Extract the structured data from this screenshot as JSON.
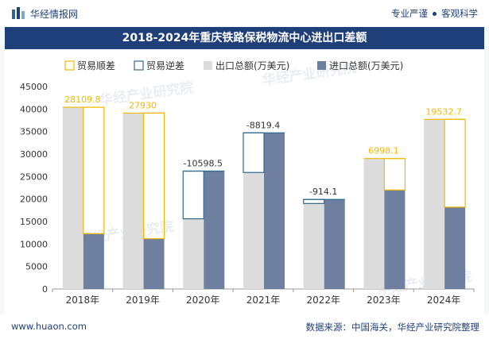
{
  "header": {
    "brand": "华经情报网",
    "tagline_left": "专业严谨",
    "tagline_right": "客观科学"
  },
  "title": "2018-2024年重庆铁路保税物流中心进出口差额",
  "footer": {
    "site": "www.huaon.com",
    "source": "数据来源：中国海关，华经产业研究院整理"
  },
  "watermarks": [
    "华经产业研究院",
    "华经产业研究院",
    "华经产业研究院",
    "华经产业研究院"
  ],
  "colors": {
    "surplus": "#f5b800",
    "deficit": "#2e6a8e",
    "export": "#dcdcdc",
    "import": "#6f7f9f",
    "label": "#f5b800",
    "deficit_label": "#333333",
    "brand": "#1f3f7a"
  },
  "chart_data": {
    "type": "bar",
    "categories": [
      "2018年",
      "2019年",
      "2020年",
      "2021年",
      "2022年",
      "2023年",
      "2024年"
    ],
    "ylim": [
      0,
      45000
    ],
    "yticks": [
      0,
      5000,
      10000,
      15000,
      20000,
      25000,
      30000,
      35000,
      40000,
      45000
    ],
    "legend_position": "top",
    "legend": [
      "贸易顺差",
      "贸易逆差",
      "出口总额(万美元)",
      "进口总额(万美元)"
    ],
    "series": [
      {
        "name": "出口总额(万美元)",
        "values": [
          40400,
          39100,
          15600,
          25900,
          19000,
          29000,
          37700
        ]
      },
      {
        "name": "进口总额(万美元)",
        "values": [
          12300,
          11200,
          26200,
          34700,
          19900,
          22000,
          18200
        ]
      }
    ],
    "balance": [
      {
        "value": 28109.8,
        "label": "28109.8",
        "kind": "surplus"
      },
      {
        "value": 27930,
        "label": "27930",
        "kind": "surplus"
      },
      {
        "value": -10598.5,
        "label": "-10598.5",
        "kind": "deficit"
      },
      {
        "value": -8819.4,
        "label": "-8819.4",
        "kind": "deficit"
      },
      {
        "value": -914.1,
        "label": "-914.1",
        "kind": "deficit"
      },
      {
        "value": 6998.1,
        "label": "6998.1",
        "kind": "surplus"
      },
      {
        "value": 19532.7,
        "label": "19532.7",
        "kind": "surplus"
      }
    ]
  }
}
